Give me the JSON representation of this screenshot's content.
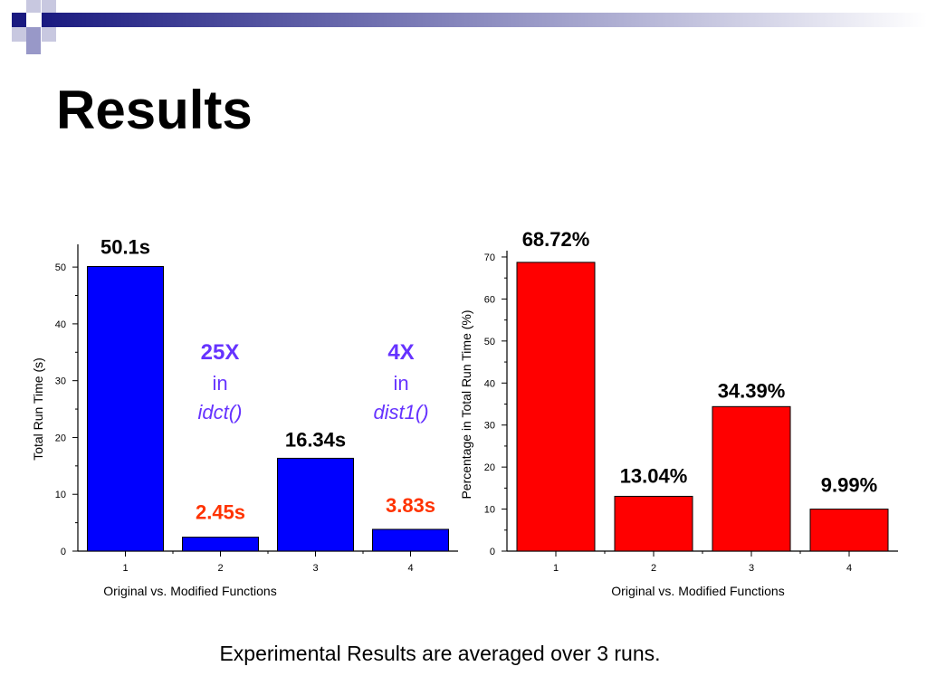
{
  "slide": {
    "title": "Results",
    "footnote": "Experimental Results are averaged over 3 runs."
  },
  "chart_data": [
    {
      "type": "bar",
      "categories": [
        "1",
        "2",
        "3",
        "4"
      ],
      "values": [
        50.1,
        2.45,
        16.34,
        3.83
      ],
      "data_labels": [
        "50.1s",
        "2.45s",
        "16.34s",
        "3.83s"
      ],
      "xlabel": "Original vs. Modified Functions",
      "ylabel": "Total Run Time (s)",
      "ylim": [
        0,
        54
      ],
      "yticks": [
        0,
        10,
        20,
        30,
        40,
        50
      ],
      "grid": false,
      "colors": {
        "bar": "#0000ff",
        "label_fast": "#ff3300",
        "annotation": "#6633ff"
      },
      "annotations": [
        {
          "lines": [
            "25X",
            "in",
            "idct()"
          ]
        },
        {
          "lines": [
            "4X",
            "in",
            "dist1()"
          ]
        }
      ]
    },
    {
      "type": "bar",
      "categories": [
        "1",
        "2",
        "3",
        "4"
      ],
      "values": [
        68.72,
        13.04,
        34.39,
        9.99
      ],
      "data_labels": [
        "68.72%",
        "13.04%",
        "34.39%",
        "9.99%"
      ],
      "xlabel": "Original vs. Modified Functions",
      "ylabel": "Percentage in Total Run Time (%)",
      "ylim": [
        0,
        71.5
      ],
      "yticks": [
        0,
        10,
        20,
        30,
        40,
        50,
        60,
        70
      ],
      "grid": false,
      "colors": {
        "bar": "#ff0000"
      }
    }
  ]
}
